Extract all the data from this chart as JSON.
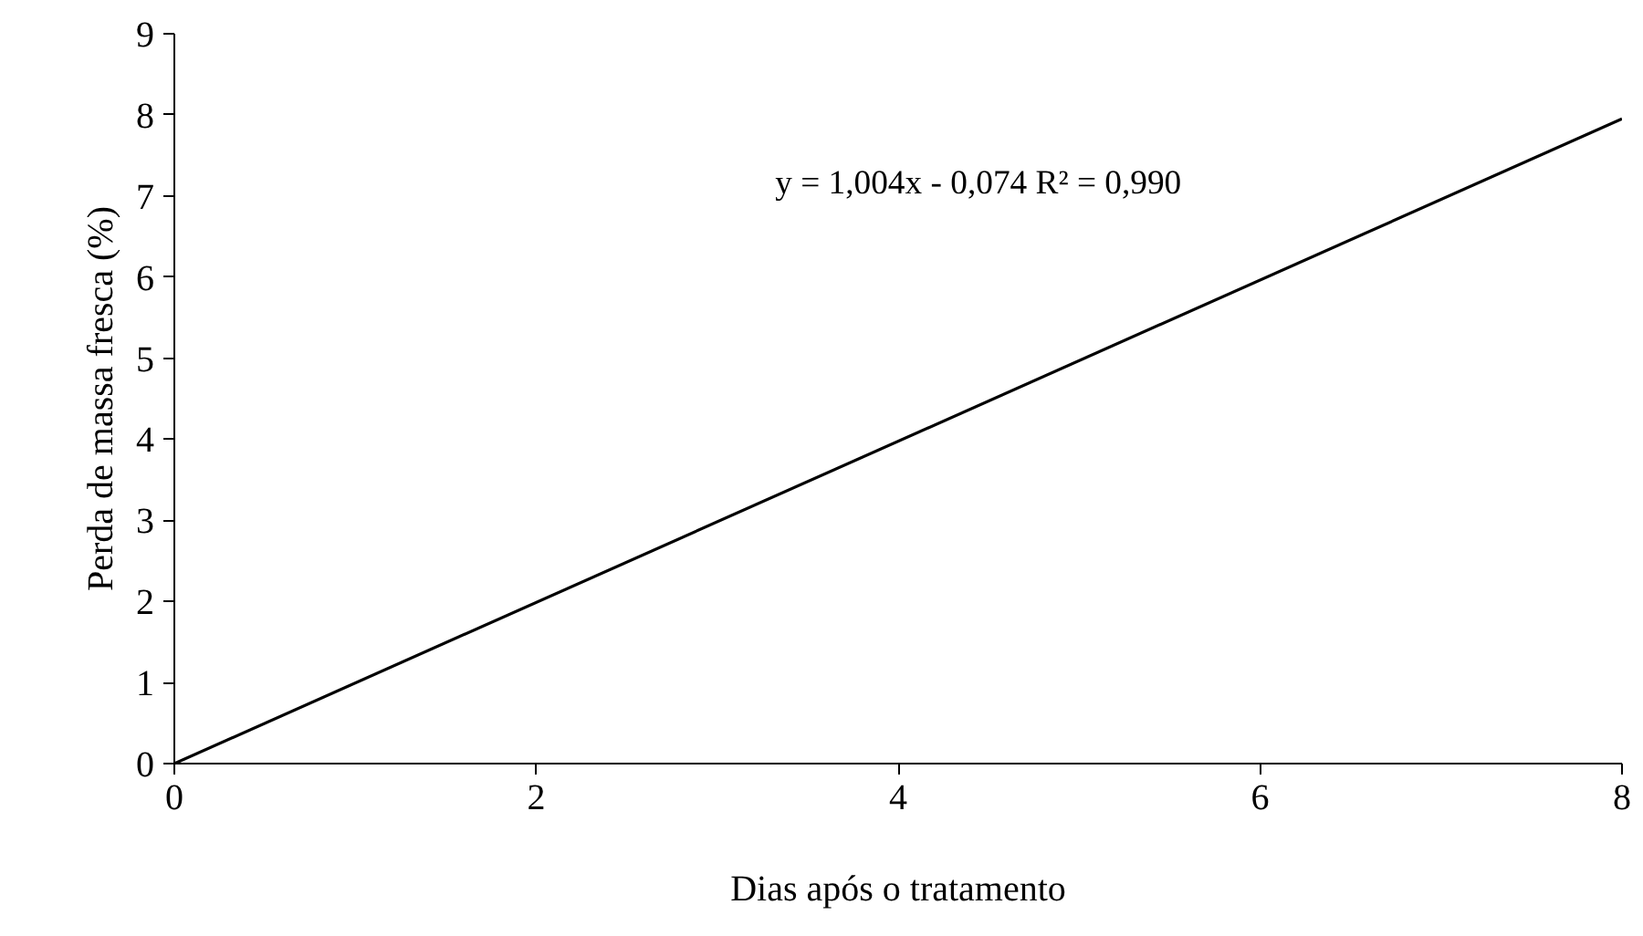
{
  "chart_data": {
    "type": "line",
    "xlabel": "Dias após o tratamento",
    "ylabel": "Perda de massa fresca (%)",
    "x": [
      0,
      8
    ],
    "series": [
      {
        "color": "#000000",
        "values": [
          0,
          7.95
        ]
      }
    ],
    "xlim": [
      0,
      8
    ],
    "xticks": [
      0,
      2,
      4,
      6,
      8
    ],
    "ylim": [
      0,
      9
    ],
    "yticks": [
      0,
      1,
      2,
      3,
      4,
      5,
      6,
      7,
      8,
      9
    ],
    "grid": false,
    "marker": "none",
    "line_style": "solid",
    "annotations": [
      "y = 1,004x - 0,074   R² = 0,990"
    ]
  }
}
